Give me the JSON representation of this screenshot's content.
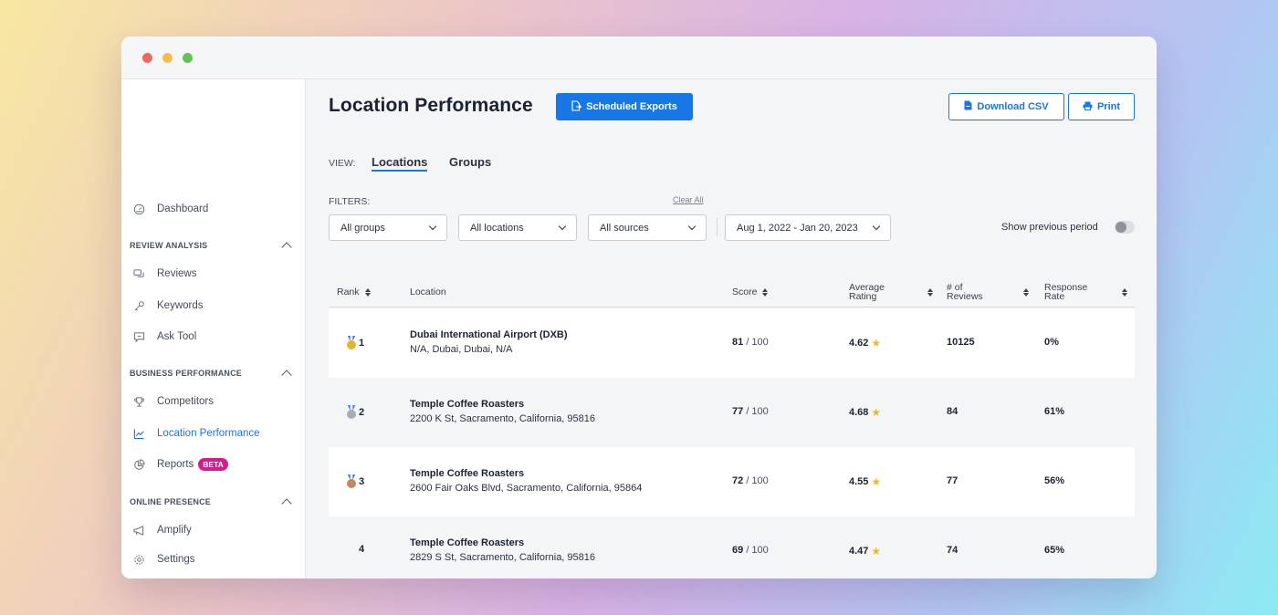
{
  "sidebar": {
    "dashboard": "Dashboard",
    "sections": {
      "review_analysis": "REVIEW ANALYSIS",
      "business_performance": "BUSINESS PERFORMANCE",
      "online_presence": "ONLINE PRESENCE"
    },
    "items": {
      "reviews": "Reviews",
      "keywords": "Keywords",
      "ask_tool": "Ask Tool",
      "competitors": "Competitors",
      "location_performance": "Location Performance",
      "reports": "Reports",
      "reports_badge": "BETA",
      "amplify": "Amplify",
      "settings": "Settings"
    },
    "active_item": "Location Performance"
  },
  "header": {
    "title": "Location Performance",
    "scheduled_exports": "Scheduled Exports",
    "download_csv": "Download CSV",
    "print": "Print"
  },
  "view": {
    "label": "VIEW:",
    "tabs": [
      "Locations",
      "Groups"
    ],
    "active": "Locations"
  },
  "filters": {
    "label": "FILTERS:",
    "clear_all": "Clear All",
    "groups": "All groups",
    "locations": "All locations",
    "sources": "All sources",
    "date_range": "Aug 1, 2022 - Jan 20, 2023",
    "show_previous": "Show previous period",
    "show_previous_on": false
  },
  "table": {
    "columns": {
      "rank": "Rank",
      "location": "Location",
      "score": "Score",
      "avg_rating_1": "Average",
      "avg_rating_2": "Rating",
      "reviews_1": "# of",
      "reviews_2": "Reviews",
      "response_1": "Response",
      "response_2": "Rate"
    },
    "score_max": "/ 100",
    "rows": [
      {
        "rank": "1",
        "medal": "gold",
        "name": "Dubai International Airport (DXB)",
        "address": "N/A, Dubai, Dubai, N/A",
        "score": "81",
        "rating": "4.62",
        "reviews": "10125",
        "response": "0%"
      },
      {
        "rank": "2",
        "medal": "silver",
        "name": "Temple Coffee Roasters",
        "address": "2200 K St, Sacramento, California, 95816",
        "score": "77",
        "rating": "4.68",
        "reviews": "84",
        "response": "61%"
      },
      {
        "rank": "3",
        "medal": "bronze",
        "name": "Temple Coffee Roasters",
        "address": "2600 Fair Oaks Blvd, Sacramento, California, 95864",
        "score": "72",
        "rating": "4.55",
        "reviews": "77",
        "response": "56%"
      },
      {
        "rank": "4",
        "medal": "",
        "name": "Temple Coffee Roasters",
        "address": "2829 S St, Sacramento, California, 95816",
        "score": "69",
        "rating": "4.47",
        "reviews": "74",
        "response": "65%"
      }
    ]
  },
  "colors": {
    "accent": "#1677e5",
    "beta_badge": "#d41c8f",
    "star": "#f5b71d",
    "gold": "#e8b52a",
    "silver": "#a7adb6",
    "bronze": "#c8875a"
  }
}
